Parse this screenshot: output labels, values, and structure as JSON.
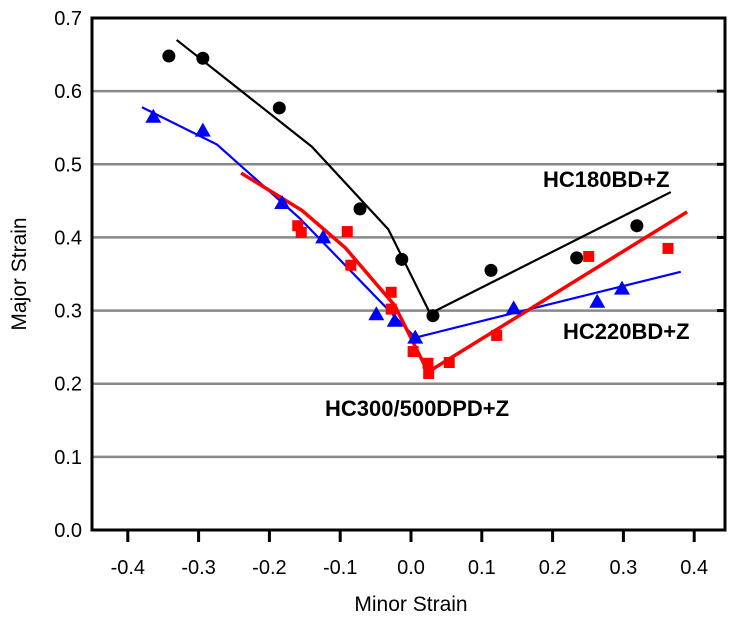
{
  "chart_data": {
    "type": "scatter",
    "title": "",
    "xlabel": "Minor Strain",
    "ylabel": "Major Strain",
    "xlim": [
      -0.45,
      0.45
    ],
    "ylim": [
      0.0,
      0.7
    ],
    "xticks": [
      "-0.4",
      "-0.3",
      "-0.2",
      "-0.1",
      "0.0",
      "0.1",
      "0.2",
      "0.3",
      "0.4"
    ],
    "yticks": [
      "0.0",
      "0.1",
      "0.2",
      "0.3",
      "0.4",
      "0.5",
      "0.6",
      "0.7"
    ],
    "grid": "horizontal",
    "series": [
      {
        "name": "HC180BD+Z",
        "color": "#000000",
        "marker": "circle",
        "points": [
          [
            -0.342,
            0.648
          ],
          [
            -0.294,
            0.645
          ],
          [
            -0.186,
            0.577
          ],
          [
            -0.072,
            0.439
          ],
          [
            -0.013,
            0.37
          ],
          [
            0.031,
            0.293
          ],
          [
            0.113,
            0.355
          ],
          [
            0.234,
            0.372
          ],
          [
            0.319,
            0.416
          ]
        ],
        "curve": [
          [
            -0.331,
            0.67
          ],
          [
            -0.14,
            0.524
          ],
          [
            -0.032,
            0.411
          ],
          [
            0.027,
            0.296
          ],
          [
            0.367,
            0.462
          ]
        ]
      },
      {
        "name": "HC220BD+Z",
        "color": "#0000ff",
        "marker": "triangle",
        "points": [
          [
            -0.364,
            0.565
          ],
          [
            -0.294,
            0.546
          ],
          [
            -0.182,
            0.447
          ],
          [
            -0.124,
            0.4
          ],
          [
            -0.049,
            0.295
          ],
          [
            -0.023,
            0.286
          ],
          [
            0.006,
            0.263
          ],
          [
            0.145,
            0.303
          ],
          [
            0.263,
            0.312
          ],
          [
            0.298,
            0.33
          ]
        ],
        "curve": [
          [
            -0.38,
            0.578
          ],
          [
            -0.274,
            0.527
          ],
          [
            -0.157,
            0.426
          ],
          [
            -0.058,
            0.327
          ],
          [
            0.006,
            0.263
          ],
          [
            0.13,
            0.293
          ],
          [
            0.381,
            0.353
          ]
        ]
      },
      {
        "name": "HC300/500DPD+Z",
        "color": "#ff0000",
        "marker": "square",
        "points": [
          [
            -0.16,
            0.416
          ],
          [
            -0.155,
            0.407
          ],
          [
            -0.09,
            0.408
          ],
          [
            -0.085,
            0.362
          ],
          [
            -0.028,
            0.325
          ],
          [
            -0.028,
            0.302
          ],
          [
            0.003,
            0.244
          ],
          [
            0.024,
            0.228
          ],
          [
            0.025,
            0.214
          ],
          [
            0.054,
            0.229
          ],
          [
            0.121,
            0.266
          ],
          [
            0.251,
            0.374
          ],
          [
            0.363,
            0.385
          ]
        ],
        "curve": [
          [
            -0.24,
            0.488
          ],
          [
            -0.154,
            0.437
          ],
          [
            -0.093,
            0.386
          ],
          [
            -0.023,
            0.307
          ],
          [
            0.024,
            0.216
          ],
          [
            0.39,
            0.435
          ]
        ]
      }
    ]
  }
}
